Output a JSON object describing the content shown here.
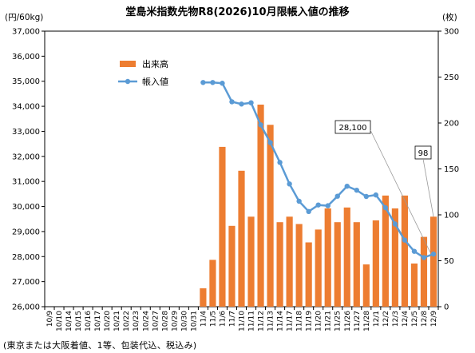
{
  "chart_data": {
    "type": "bar",
    "title": "堂島米指数先物R8(2026)10月限帳入値の推移",
    "note": "(東京または大阪着値、1等、包装代込、税込み)",
    "y_left": {
      "unit": "(円/60kg)",
      "min": 26000,
      "max": 37000,
      "step": 1000,
      "ticks": [
        "26,000",
        "27,000",
        "28,000",
        "29,000",
        "30,000",
        "31,000",
        "32,000",
        "33,000",
        "34,000",
        "35,000",
        "36,000",
        "37,000"
      ]
    },
    "y_right": {
      "unit": "(枚)",
      "min": 0,
      "max": 300,
      "step": 50,
      "ticks": [
        "0",
        "50",
        "100",
        "150",
        "200",
        "250",
        "300"
      ]
    },
    "categories": [
      "10/9",
      "10/10",
      "10/14",
      "10/15",
      "10/16",
      "10/17",
      "10/20",
      "10/21",
      "10/22",
      "10/23",
      "10/24",
      "10/27",
      "10/28",
      "10/29",
      "10/30",
      "10/31",
      "11/4",
      "11/5",
      "11/6",
      "11/7",
      "11/10",
      "11/11",
      "11/12",
      "11/13",
      "11/14",
      "11/17",
      "11/18",
      "11/19",
      "11/20",
      "11/21",
      "11/25",
      "11/26",
      "11/27",
      "11/28",
      "12/1",
      "12/2",
      "12/3",
      "12/4",
      "12/5",
      "12/8",
      "12/9"
    ],
    "legend": {
      "bar_label": "出来高",
      "line_label": "帳入値"
    },
    "series": [
      {
        "name": "出来高",
        "type": "bar",
        "axis": "right",
        "color": "#ed7d31",
        "values": [
          null,
          null,
          null,
          null,
          null,
          null,
          null,
          null,
          null,
          null,
          null,
          null,
          null,
          null,
          null,
          null,
          20,
          51,
          174,
          88,
          148,
          98,
          220,
          198,
          92,
          98,
          90,
          70,
          84,
          107,
          92,
          108,
          92,
          46,
          94,
          121,
          107,
          121,
          47,
          76,
          98
        ]
      },
      {
        "name": "帳入値",
        "type": "line",
        "axis": "left",
        "color": "#5b9bd5",
        "values": [
          null,
          null,
          null,
          null,
          null,
          null,
          null,
          null,
          null,
          null,
          null,
          null,
          null,
          null,
          null,
          null,
          34950,
          34950,
          34920,
          34180,
          34090,
          34140,
          33260,
          32550,
          31760,
          30900,
          30210,
          29800,
          30060,
          30030,
          30410,
          30810,
          30650,
          30400,
          30460,
          29950,
          29300,
          28660,
          28210,
          27960,
          28100
        ]
      }
    ],
    "callouts": [
      {
        "text": "28,100",
        "series": "帳入値",
        "category": "12/9"
      },
      {
        "text": "98",
        "series": "出来高",
        "category": "12/9"
      }
    ]
  }
}
